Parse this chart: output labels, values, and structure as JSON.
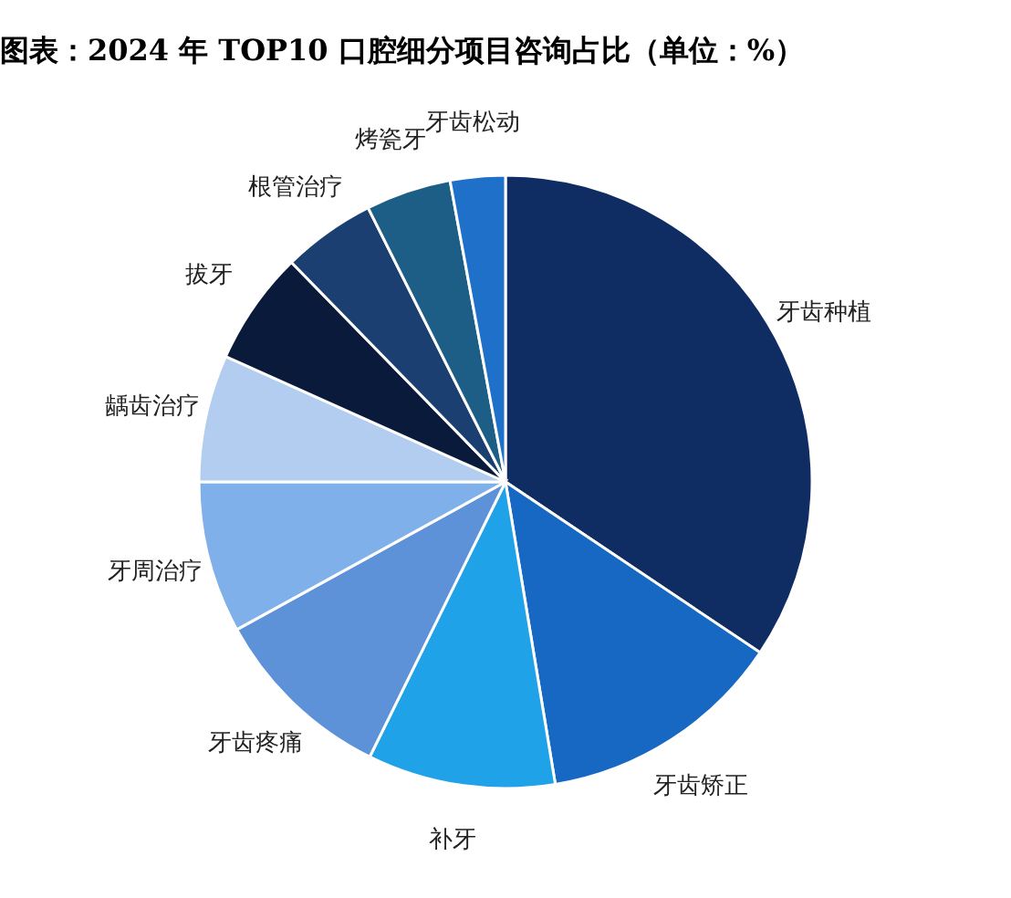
{
  "chart_data": {
    "type": "pie",
    "title": "图表：2024 年  TOP10 口腔细分项目咨询占比（单位：%）",
    "categories": [
      "牙齿种植",
      "牙齿矫正",
      "补牙",
      "牙齿疼痛",
      "牙周治疗",
      "龋齿治疗",
      "拔牙",
      "根管治疗",
      "烤瓷牙",
      "牙齿松动"
    ],
    "values": [
      34.4,
      13,
      9.9,
      9.7,
      8,
      6.7,
      6,
      4.9,
      4.5,
      2.9
    ],
    "colors": [
      "#0f2d63",
      "#1768c2",
      "#1fa2e8",
      "#5d92d8",
      "#7fb0ea",
      "#b3cdf0",
      "#0a1a3b",
      "#1b3f70",
      "#1d5e86",
      "#1f70c9"
    ]
  }
}
